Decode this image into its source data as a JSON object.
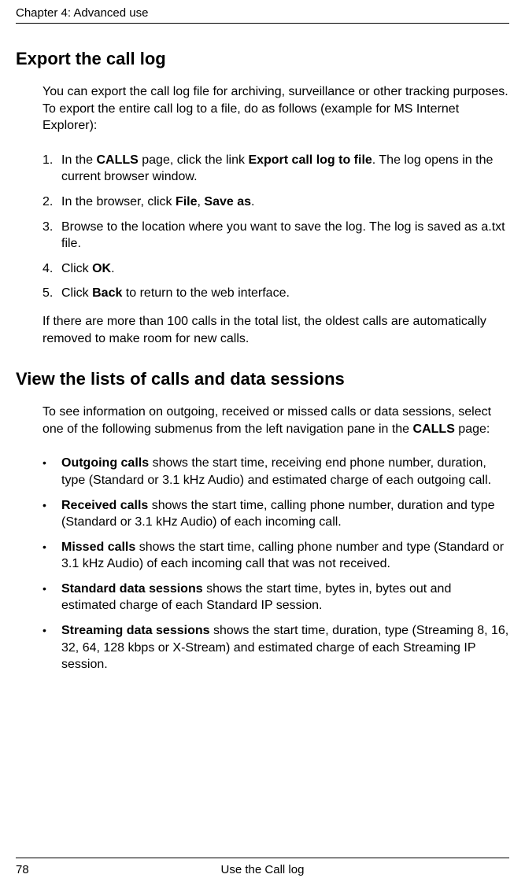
{
  "header": {
    "chapter_label": "Chapter 4:  Advanced use"
  },
  "section1": {
    "heading": "Export the call log",
    "intro": "You can export the call log file for archiving, surveillance or other tracking purposes. To export the entire call log to a file, do as follows (example for MS Internet Explorer):",
    "steps": {
      "s1_num": "1.",
      "s1_a": "In the ",
      "s1_b": "CALLS",
      "s1_c": " page, click the link ",
      "s1_d": "Export call log to file",
      "s1_e": ". The log opens in the current browser window.",
      "s2_num": "2.",
      "s2_a": "In the browser, click ",
      "s2_b": "File",
      "s2_c": ", ",
      "s2_d": "Save as",
      "s2_e": ".",
      "s3_num": "3.",
      "s3_a": "Browse to the location where you want to save the log. The log is saved as a.txt file.",
      "s4_num": "4.",
      "s4_a": "Click ",
      "s4_b": "OK",
      "s4_c": ".",
      "s5_num": "5.",
      "s5_a": "Click ",
      "s5_b": "Back",
      "s5_c": " to return to the web interface."
    },
    "after": "If there are more than 100 calls in the total list, the oldest calls are automatically removed to make room for new calls."
  },
  "section2": {
    "heading": "View the lists of calls and data sessions",
    "intro_a": "To see information on outgoing, received or missed calls or data sessions, select one of the following submenus from the left navigation pane in the ",
    "intro_b": "CALLS",
    "intro_c": " page:",
    "bullets": {
      "bullet": "•",
      "b1_a": "Outgoing calls",
      "b1_b": " shows the start time, receiving end phone number, duration, type (Standard or 3.1 kHz Audio) and estimated charge of each outgoing call.",
      "b2_a": "Received calls",
      "b2_b": " shows the start time, calling phone number, duration and type (Standard or 3.1 kHz Audio) of each incoming call.",
      "b3_a": "Missed calls",
      "b3_b": " shows the start time, calling phone number and type (Standard or 3.1 kHz Audio) of each incoming call that was not received.",
      "b4_a": "Standard data sessions",
      "b4_b": " shows the start time, bytes in, bytes out and estimated charge of each Standard IP session.",
      "b5_a": "Streaming data sessions",
      "b5_b": " shows the start time, duration, type (Streaming 8, 16, 32, 64, 128 kbps or X-Stream) and estimated charge of each Streaming IP session."
    }
  },
  "footer": {
    "page_number": "78",
    "section_title": "Use the Call log"
  }
}
